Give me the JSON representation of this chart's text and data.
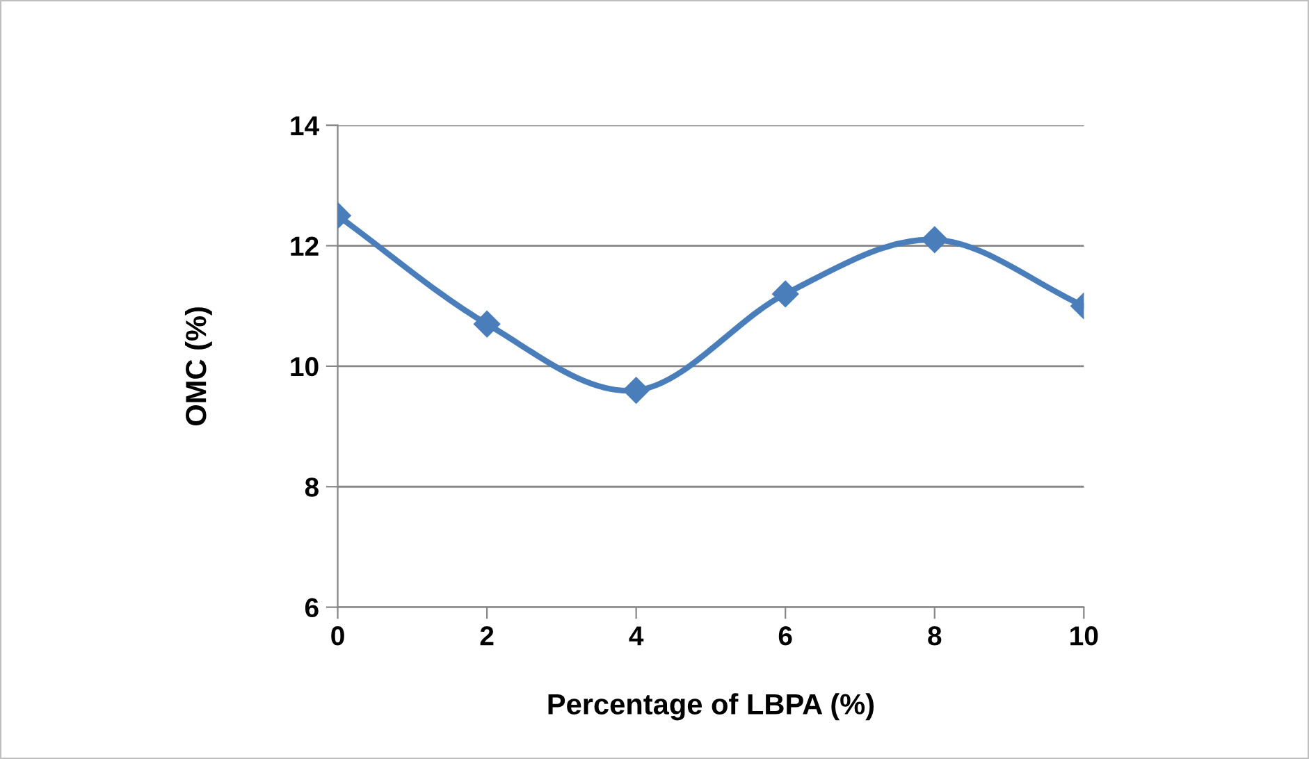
{
  "chart_data": {
    "type": "line",
    "xlabel": "Percentage of LBPA (%)",
    "ylabel": "OMC (%)",
    "x": [
      0,
      2,
      4,
      6,
      8,
      10
    ],
    "series": [
      {
        "color": "#4a7ebb",
        "values": [
          12.5,
          10.7,
          9.6,
          11.2,
          12.1,
          11.0
        ]
      }
    ],
    "xlim": [
      0,
      10
    ],
    "xticks": [
      0,
      2,
      4,
      6,
      8,
      10
    ],
    "ylim": [
      6,
      14
    ],
    "yticks": [
      6,
      8,
      10,
      12,
      14
    ],
    "grid": "y",
    "marker": "diamond",
    "line_style": "solid",
    "legend": false
  }
}
